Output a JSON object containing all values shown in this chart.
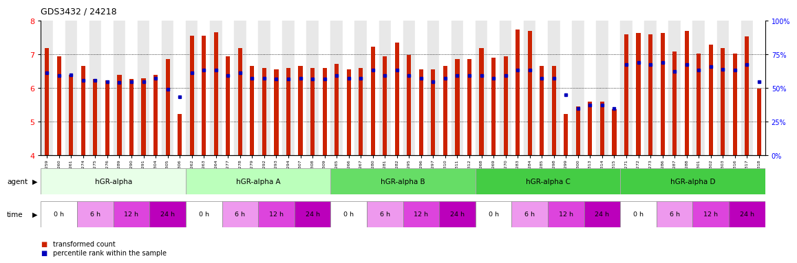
{
  "title": "GDS3432 / 24218",
  "ylim": [
    4,
    8
  ],
  "yticks": [
    4,
    5,
    6,
    7,
    8
  ],
  "right_ylim": [
    0,
    100
  ],
  "right_yticks": [
    0,
    25,
    50,
    75,
    100
  ],
  "right_yticklabels": [
    "0%",
    "25%",
    "50%",
    "75%",
    "100%"
  ],
  "samples": [
    "GSM154259",
    "GSM154260",
    "GSM154261",
    "GSM154274",
    "GSM154275",
    "GSM154276",
    "GSM154289",
    "GSM154290",
    "GSM154291",
    "GSM154304",
    "GSM154305",
    "GSM154306",
    "GSM154262",
    "GSM154263",
    "GSM154264",
    "GSM154277",
    "GSM154278",
    "GSM154279",
    "GSM154292",
    "GSM154293",
    "GSM154294",
    "GSM154307",
    "GSM154308",
    "GSM154309",
    "GSM154265",
    "GSM154266",
    "GSM154267",
    "GSM154280",
    "GSM154281",
    "GSM154282",
    "GSM154295",
    "GSM154296",
    "GSM154297",
    "GSM154310",
    "GSM154311",
    "GSM154312",
    "GSM154268",
    "GSM154269",
    "GSM154270",
    "GSM154283",
    "GSM154284",
    "GSM154285",
    "GSM154298",
    "GSM154299",
    "GSM154300",
    "GSM154313",
    "GSM154314",
    "GSM154315",
    "GSM154271",
    "GSM154272",
    "GSM154273",
    "GSM154286",
    "GSM154287",
    "GSM154288",
    "GSM154301",
    "GSM154302",
    "GSM154303",
    "GSM154316",
    "GSM154317",
    "GSM154318"
  ],
  "bar_values": [
    7.18,
    6.94,
    6.39,
    6.64,
    6.25,
    6.22,
    6.38,
    6.25,
    6.27,
    6.38,
    6.84,
    5.22,
    7.55,
    7.55,
    7.65,
    6.94,
    7.18,
    6.64,
    6.58,
    6.55,
    6.58,
    6.64,
    6.58,
    6.58,
    6.7,
    6.55,
    6.58,
    7.22,
    6.94,
    7.33,
    6.98,
    6.55,
    6.55,
    6.64,
    6.84,
    6.84,
    7.18,
    6.9,
    6.94,
    7.72,
    7.68,
    6.64,
    6.64,
    5.22,
    5.45,
    5.58,
    5.58,
    5.35,
    7.58,
    7.62,
    7.58,
    7.62,
    7.08,
    7.68,
    7.02,
    7.28,
    7.18,
    7.02,
    7.52,
    5.98
  ],
  "dot_values": [
    6.44,
    6.35,
    6.38,
    6.22,
    6.22,
    6.18,
    6.15,
    6.18,
    6.18,
    6.28,
    5.95,
    5.72,
    6.44,
    6.52,
    6.52,
    6.35,
    6.44,
    6.28,
    6.28,
    6.25,
    6.25,
    6.28,
    6.25,
    6.25,
    6.35,
    6.28,
    6.28,
    6.52,
    6.35,
    6.52,
    6.35,
    6.28,
    6.18,
    6.28,
    6.35,
    6.35,
    6.35,
    6.28,
    6.35,
    6.52,
    6.52,
    6.28,
    6.28,
    5.78,
    5.38,
    5.48,
    5.48,
    5.38,
    6.68,
    6.75,
    6.68,
    6.75,
    6.48,
    6.68,
    6.52,
    6.62,
    6.55,
    6.52,
    6.68,
    6.18
  ],
  "bar_color": "#cc2200",
  "dot_color": "#0000bb",
  "groups": [
    {
      "label": "hGR-alpha",
      "start": 0,
      "end": 12,
      "color": "#e8ffe8"
    },
    {
      "label": "hGR-alpha A",
      "start": 12,
      "end": 24,
      "color": "#bbffbb"
    },
    {
      "label": "hGR-alpha B",
      "start": 24,
      "end": 36,
      "color": "#66dd66"
    },
    {
      "label": "hGR-alpha C",
      "start": 36,
      "end": 48,
      "color": "#44cc44"
    },
    {
      "label": "hGR-alpha D",
      "start": 48,
      "end": 60,
      "color": "#44cc44"
    }
  ],
  "time_colors": [
    "#ffffff",
    "#ee99ee",
    "#dd44dd",
    "#bb00bb"
  ],
  "time_labels": [
    "0 h",
    "6 h",
    "12 h",
    "24 h"
  ],
  "legend_items": [
    {
      "label": "transformed count",
      "color": "#cc2200"
    },
    {
      "label": "percentile rank within the sample",
      "color": "#0000bb"
    }
  ]
}
